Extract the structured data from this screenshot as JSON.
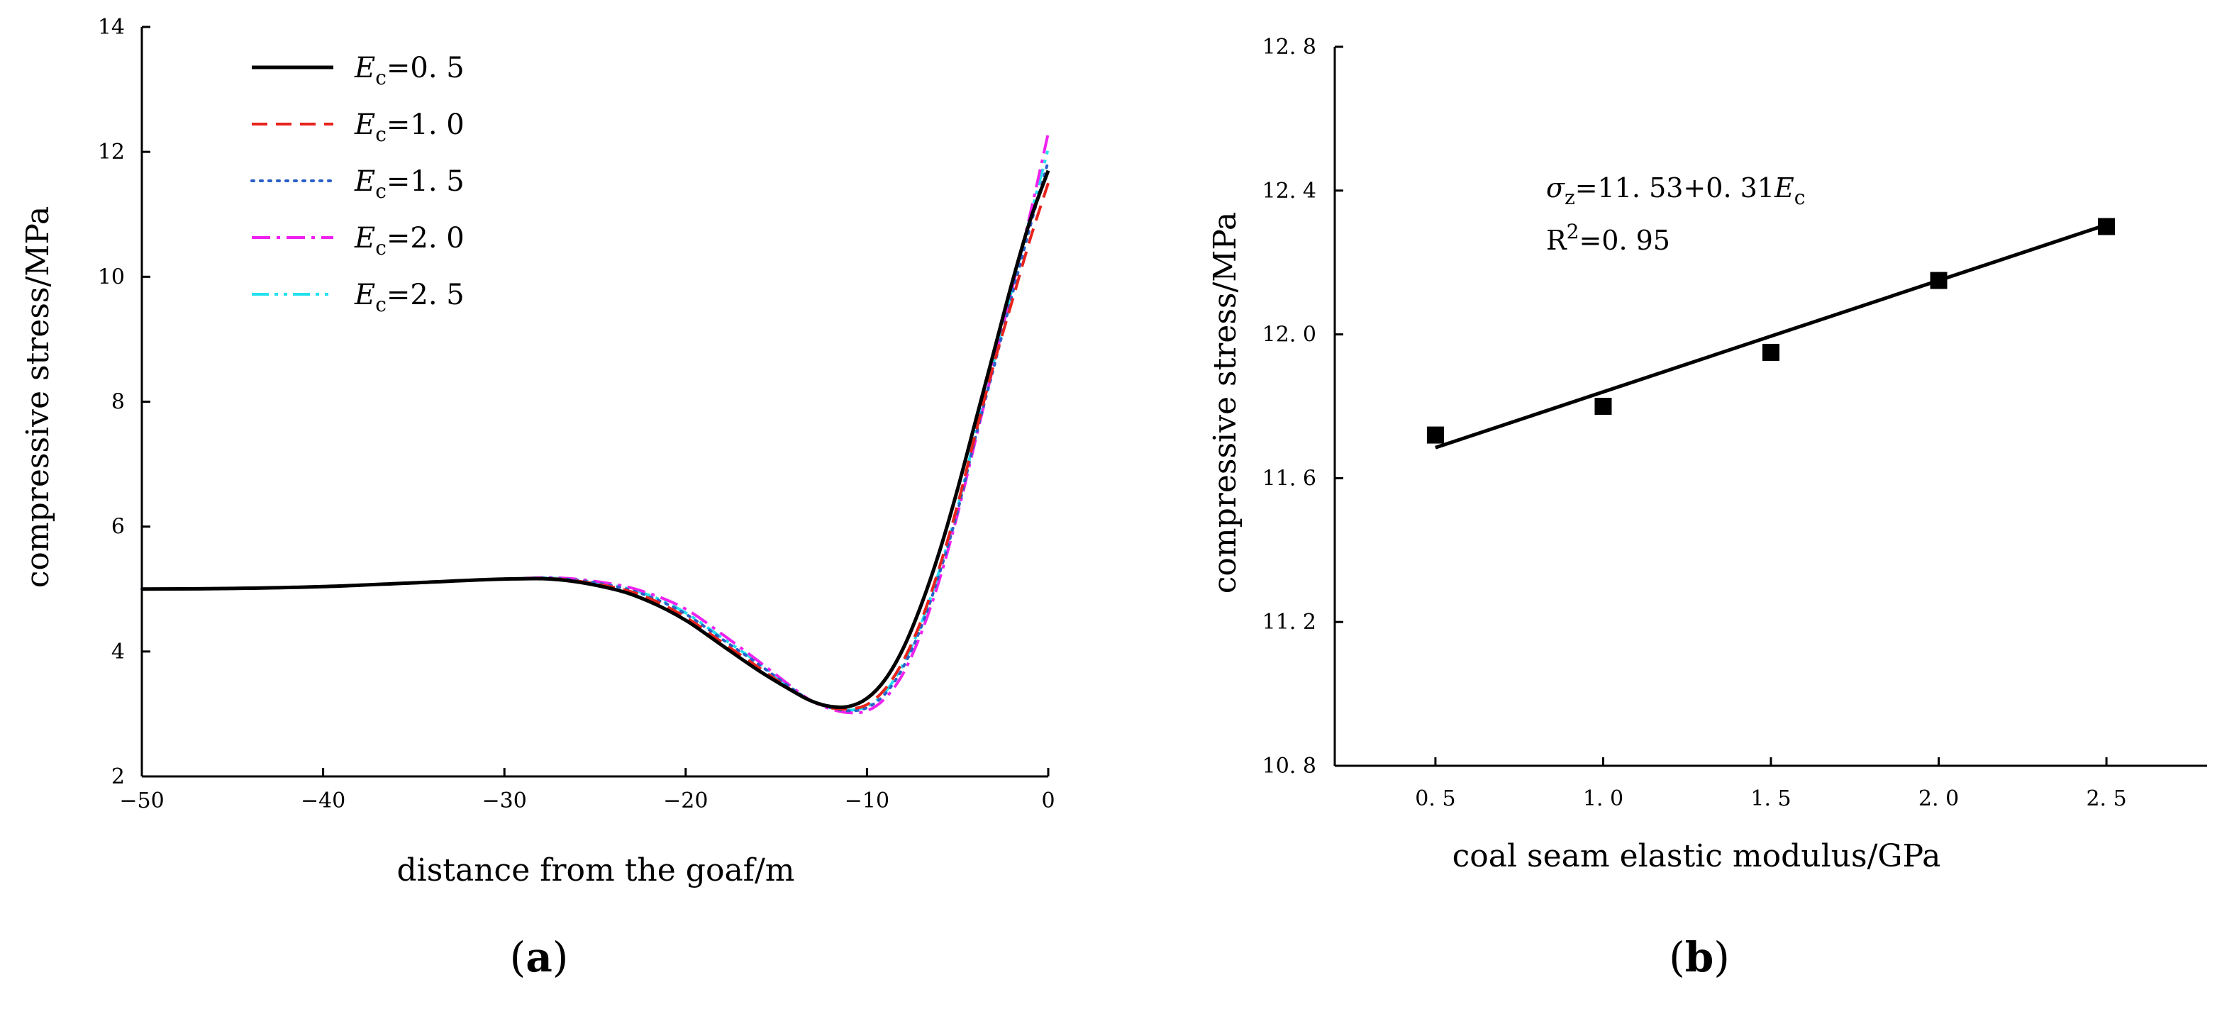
{
  "chart_data": [
    {
      "id": "a",
      "panel_label": "a",
      "type": "line",
      "xlabel": "distance from the goaf/m",
      "ylabel": "compressive stress/MPa",
      "xlim": [
        -50,
        0
      ],
      "ylim": [
        2,
        14
      ],
      "xticks": [
        -50,
        -40,
        -30,
        -20,
        -10,
        0
      ],
      "xtick_labels": [
        "−50",
        "−40",
        "−30",
        "−20",
        "−10",
        "0"
      ],
      "yticks": [
        2,
        4,
        6,
        8,
        10,
        12,
        14
      ],
      "ytick_labels": [
        "2",
        "4",
        "6",
        "8",
        "10",
        "12",
        "14"
      ],
      "grid": false,
      "legend": "top-left",
      "x": [
        -50,
        -45,
        -40,
        -35,
        -30,
        -27,
        -24,
        -22,
        -20,
        -18,
        -16,
        -14,
        -13,
        -12,
        -11,
        -10,
        -9,
        -8,
        -7,
        -6,
        -5,
        -4,
        -3,
        -2,
        -1,
        0
      ],
      "series": [
        {
          "name": "Ec=0.5",
          "legend_var": "E",
          "legend_sub": "c",
          "legend_value": "=0. 5",
          "color": "#000000",
          "dash": "solid",
          "values": [
            5.0,
            5.01,
            5.04,
            5.1,
            5.16,
            5.15,
            5.0,
            4.8,
            4.5,
            4.1,
            3.7,
            3.35,
            3.2,
            3.12,
            3.12,
            3.25,
            3.55,
            4.05,
            4.75,
            5.6,
            6.6,
            7.7,
            8.8,
            9.9,
            10.9,
            11.7
          ]
        },
        {
          "name": "Ec=1.0",
          "legend_var": "E",
          "legend_sub": "c",
          "legend_value": "=1. 0",
          "color": "#e8231d",
          "dash": "dashed",
          "values": [
            5.0,
            5.01,
            5.04,
            5.1,
            5.16,
            5.16,
            5.03,
            4.85,
            4.55,
            4.15,
            3.75,
            3.35,
            3.2,
            3.1,
            3.08,
            3.15,
            3.4,
            3.85,
            4.5,
            5.35,
            6.35,
            7.5,
            8.6,
            9.6,
            10.6,
            11.5
          ]
        },
        {
          "name": "Ec=1.5",
          "legend_var": "E",
          "legend_sub": "c",
          "legend_value": "=1. 5",
          "color": "#2a5fc9",
          "dash": "dotted",
          "values": [
            5.0,
            5.01,
            5.04,
            5.1,
            5.16,
            5.17,
            5.05,
            4.88,
            4.6,
            4.2,
            3.8,
            3.38,
            3.2,
            3.1,
            3.05,
            3.1,
            3.32,
            3.75,
            4.4,
            5.25,
            6.25,
            7.45,
            8.55,
            9.7,
            10.8,
            11.85
          ]
        },
        {
          "name": "Ec=2.0",
          "legend_var": "E",
          "legend_sub": "c",
          "legend_value": "=2. 0",
          "color": "#ee22ee",
          "dash": "dashdot",
          "values": [
            5.0,
            5.01,
            5.04,
            5.1,
            5.16,
            5.18,
            5.08,
            4.93,
            4.68,
            4.28,
            3.85,
            3.4,
            3.2,
            3.08,
            3.02,
            3.05,
            3.25,
            3.65,
            4.3,
            5.15,
            6.2,
            7.4,
            8.6,
            9.8,
            11.0,
            12.3
          ]
        },
        {
          "name": "Ec=2.5",
          "legend_var": "E",
          "legend_sub": "c",
          "legend_value": "=2. 5",
          "color": "#22e0ee",
          "dash": "dashdotdot",
          "values": [
            5.0,
            5.01,
            5.04,
            5.1,
            5.16,
            5.17,
            5.06,
            4.9,
            4.62,
            4.22,
            3.82,
            3.38,
            3.2,
            3.1,
            3.06,
            3.12,
            3.35,
            3.8,
            4.45,
            5.3,
            6.3,
            7.5,
            8.65,
            9.8,
            10.95,
            12.05
          ]
        }
      ]
    },
    {
      "id": "b",
      "panel_label": "b",
      "type": "scatter",
      "xlabel": "coal seam elastic modulus/GPa",
      "ylabel": "compressive stress/MPa",
      "xlim": [
        0.2,
        2.8
      ],
      "ylim": [
        10.8,
        12.8
      ],
      "xticks": [
        0.5,
        1.0,
        1.5,
        2.0,
        2.5
      ],
      "xtick_labels": [
        "0. 5",
        "1. 0",
        "1. 5",
        "2. 0",
        "2. 5"
      ],
      "yticks": [
        10.8,
        11.2,
        11.6,
        12.0,
        12.4,
        12.8
      ],
      "ytick_labels": [
        "10. 8",
        "11. 2",
        "11. 6",
        "12. 0",
        "12. 4",
        "12. 8"
      ],
      "grid": false,
      "x": [
        0.5,
        1.0,
        1.5,
        2.0,
        2.5
      ],
      "values": [
        11.72,
        11.8,
        11.95,
        12.15,
        12.3
      ],
      "fit": {
        "intercept": 11.53,
        "slope": 0.31,
        "x_range": [
          0.5,
          2.5
        ]
      },
      "equation": {
        "sigma": "σ",
        "sigma_sub": "z",
        "text": "=11. 53+0. 31",
        "var": "E",
        "var_sub": "c"
      },
      "r_squared": {
        "prefix": "R",
        "sup": "2",
        "text": "=0. 95"
      }
    }
  ]
}
